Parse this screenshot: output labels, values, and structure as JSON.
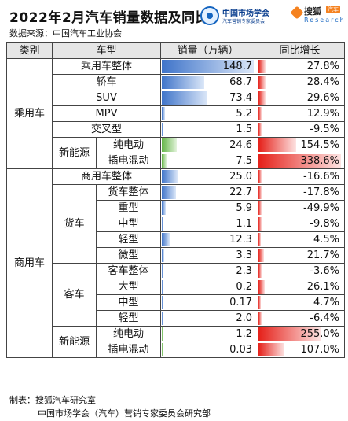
{
  "title": "2022年2月汽车销量数据及同比",
  "source": "数据来源：中国汽车工业协会",
  "logos": {
    "cma_name": "中国市场学会",
    "cma_sub": "汽车营销专家委员会",
    "sohu_name": "搜狐",
    "sohu_badge": "汽车",
    "sohu_sub": "Research"
  },
  "table": {
    "headers": {
      "category": "类别",
      "model": "车型",
      "sales": "销量（万辆）",
      "growth": "同比增长"
    },
    "groups": {
      "passenger": "乘用车",
      "passenger_nev": "新能源",
      "commercial": "商用车",
      "truck": "货车",
      "bus": "客车",
      "commercial_nev": "新能源"
    },
    "rows": [
      {
        "name": "乘用车整体",
        "sales": "148.7",
        "growth": "27.8%"
      },
      {
        "name": "轿车",
        "sales": "68.7",
        "growth": "28.4%"
      },
      {
        "name": "SUV",
        "sales": "73.4",
        "growth": "29.6%"
      },
      {
        "name": "MPV",
        "sales": "5.2",
        "growth": "12.9%"
      },
      {
        "name": "交叉型",
        "sales": "1.5",
        "growth": "-9.5%"
      },
      {
        "name": "纯电动",
        "sales": "24.6",
        "growth": "154.5%"
      },
      {
        "name": "插电混动",
        "sales": "7.5",
        "growth": "338.6%"
      },
      {
        "name": "商用车整体",
        "sales": "25.0",
        "growth": "-16.6%"
      },
      {
        "name": "货车整体",
        "sales": "22.7",
        "growth": "-17.8%"
      },
      {
        "name": "重型",
        "sales": "5.9",
        "growth": "-49.9%"
      },
      {
        "name": "中型",
        "sales": "1.1",
        "growth": "-9.8%"
      },
      {
        "name": "轻型",
        "sales": "12.3",
        "growth": "4.5%"
      },
      {
        "name": "微型",
        "sales": "3.3",
        "growth": "21.7%"
      },
      {
        "name": "客车整体",
        "sales": "2.3",
        "growth": "-3.6%"
      },
      {
        "name": "大型",
        "sales": "0.2",
        "growth": "26.1%"
      },
      {
        "name": "中型",
        "sales": "0.17",
        "growth": "4.7%"
      },
      {
        "name": "轻型",
        "sales": "2.0",
        "growth": "-6.4%"
      },
      {
        "name": "纯电动",
        "sales": "1.2",
        "growth": "255.0%"
      },
      {
        "name": "插电混动",
        "sales": "0.03",
        "growth": "107.0%"
      }
    ]
  },
  "footer": {
    "maker": "制表：搜狐汽车研究室",
    "org": "中国市场学会（汽车）营销专家委员会研究部"
  },
  "colors": {
    "sales_bar": "#3f74c9",
    "nev_sales_bar": "#63b546",
    "growth_bar": "#e52019"
  }
}
